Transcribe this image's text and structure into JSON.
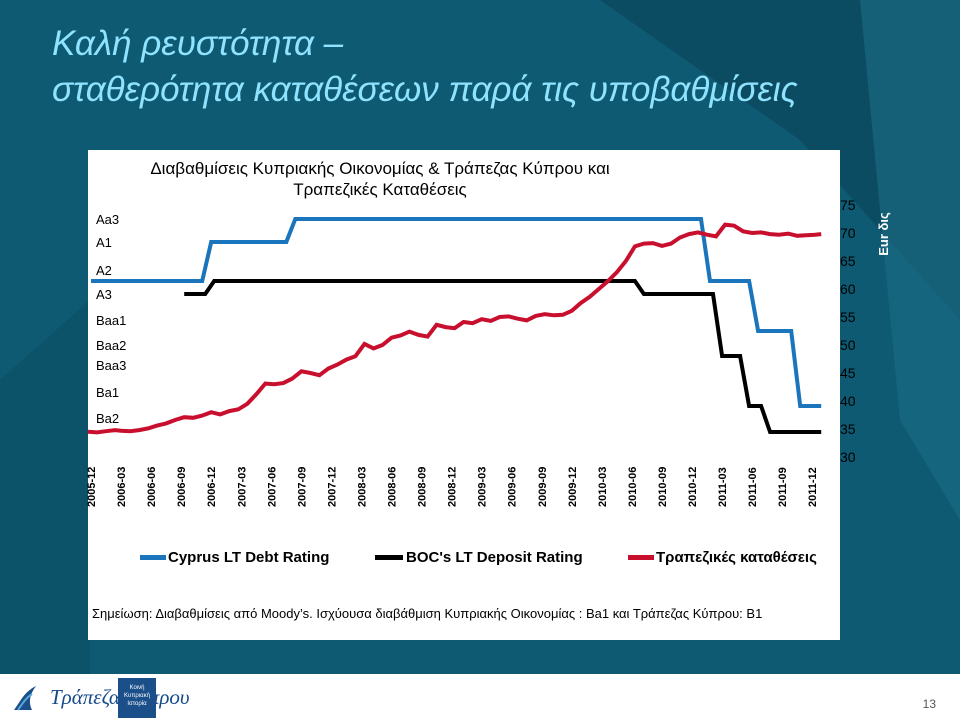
{
  "slide": {
    "title_line1": "Καλή ρευστότητα –",
    "title_line2": "σταθερότητα καταθέσεων παρά τις υποβαθμίσεις",
    "note": "Σημείωση: Διαβαθμίσεις από Moody’s.  Ισχύουσα διαβάθμιση Κυπριακής Οικονομίας : Ba1  και Τράπεζας Κύπρου:  B1",
    "page_number": "13",
    "logo_text": "Τράπεζα Κύπρου",
    "badge_text": "Κοινή Κυπριακή Ιστορία",
    "colors": {
      "background": "#0e5a73",
      "title": "#8fe3ff",
      "cyprus": "#1a75bc",
      "boc": "#000000",
      "deposits": "#c8102e"
    }
  },
  "chart_data": {
    "type": "line",
    "title_line1": "Διαβαθμίσεις Κυπριακής Οικονομίας & Τράπεζας Κύπρου και",
    "title_line2": "Τραπεζικές Καταθέσεις",
    "x_ticks": [
      "2005-12",
      "2006-03",
      "2006-06",
      "2006-09",
      "2006-12",
      "2007-03",
      "2007-06",
      "2007-09",
      "2007-12",
      "2008-03",
      "2008-06",
      "2008-09",
      "2008-12",
      "2009-03",
      "2009-06",
      "2009-09",
      "2009-12",
      "2010-03",
      "2010-06",
      "2010-09",
      "2010-12",
      "2011-03",
      "2011-06",
      "2011-09",
      "2011-12"
    ],
    "x_range": [
      0,
      24.5
    ],
    "left_axis": {
      "ticks": [
        "Aa3",
        "A1",
        "A2",
        "A3",
        "Baa1",
        "Baa2",
        "Baa3",
        "Ba1",
        "Ba2"
      ],
      "top": "Aa3"
    },
    "right_axis": {
      "ticks": [
        75,
        70,
        65,
        60,
        55,
        50,
        45,
        40,
        35,
        30
      ],
      "range": [
        30,
        75
      ],
      "label": "Eur δις"
    },
    "legend": {
      "cyprus": "Cyprus LT Debt Rating",
      "boc": "BOC's LT Deposit Rating",
      "deposits": "Τραπεζικές καταθέσεις"
    },
    "series": [
      {
        "key": "cyprus",
        "name": "Cyprus LT Debt Rating",
        "axis": "left",
        "points": [
          [
            0,
            "A2"
          ],
          [
            3.7,
            "A2"
          ],
          [
            4.0,
            "A1"
          ],
          [
            6.5,
            "A1"
          ],
          [
            6.8,
            "Aa3"
          ],
          [
            20.3,
            "Aa3"
          ],
          [
            20.6,
            "A2"
          ],
          [
            21.9,
            "A2"
          ],
          [
            22.2,
            "Baa1"
          ],
          [
            23.3,
            "Baa1"
          ],
          [
            23.6,
            "Ba1"
          ],
          [
            24.3,
            "Ba1"
          ]
        ]
      },
      {
        "key": "boc",
        "name": "BOC's LT Deposit Rating",
        "axis": "left",
        "points": [
          [
            3.1,
            "A3"
          ],
          [
            3.8,
            "A3"
          ],
          [
            4.1,
            "A2"
          ],
          [
            18.1,
            "A2"
          ],
          [
            18.4,
            "A3"
          ],
          [
            20.7,
            "A3"
          ],
          [
            21.0,
            "Baa2"
          ],
          [
            21.6,
            "Baa2"
          ],
          [
            21.9,
            "Ba1"
          ],
          [
            22.3,
            "Ba1"
          ],
          [
            22.6,
            "Ba2"
          ],
          [
            24.3,
            "Ba2"
          ]
        ]
      },
      {
        "key": "deposits",
        "name": "Τραπεζικές καταθέσεις",
        "axis": "right",
        "x": [
          -0.1,
          0.2,
          0.5,
          0.8,
          1.0,
          1.3,
          1.6,
          1.9,
          2.2,
          2.5,
          2.8,
          3.1,
          3.4,
          3.7,
          4.0,
          4.3,
          4.6,
          4.9,
          5.2,
          5.5,
          5.8,
          6.1,
          6.4,
          6.7,
          7.0,
          7.3,
          7.6,
          7.9,
          8.2,
          8.5,
          8.8,
          9.1,
          9.4,
          9.7,
          10.0,
          10.3,
          10.6,
          10.9,
          11.2,
          11.5,
          11.8,
          12.1,
          12.4,
          12.7,
          13.0,
          13.3,
          13.6,
          13.9,
          14.2,
          14.5,
          14.8,
          15.1,
          15.4,
          15.7,
          16.0,
          16.3,
          16.6,
          16.9,
          17.2,
          17.5,
          17.8,
          18.1,
          18.4,
          18.7,
          19.0,
          19.3,
          19.6,
          19.9,
          20.2,
          20.5,
          20.8,
          21.1,
          21.4,
          21.7,
          22.0,
          22.3,
          22.6,
          22.9,
          23.2,
          23.5,
          23.8,
          24.1,
          24.3
        ],
        "y": [
          34.5,
          34.4,
          34.6,
          34.8,
          34.7,
          34.6,
          34.8,
          35.1,
          35.6,
          36.0,
          36.6,
          37.1,
          37.0,
          37.4,
          38.0,
          37.6,
          38.2,
          38.5,
          39.5,
          41.2,
          43.1,
          43.0,
          43.2,
          44.0,
          45.3,
          45.0,
          44.6,
          45.8,
          46.5,
          47.4,
          48.0,
          50.2,
          49.4,
          50.0,
          51.3,
          51.7,
          52.4,
          51.8,
          51.5,
          53.6,
          53.2,
          53.0,
          54.1,
          53.9,
          54.6,
          54.3,
          55.0,
          55.1,
          54.7,
          54.4,
          55.2,
          55.5,
          55.3,
          55.4,
          56.1,
          57.5,
          58.6,
          60.0,
          61.4,
          63.0,
          65.0,
          67.6,
          68.1,
          68.2,
          67.7,
          68.1,
          69.2,
          69.8,
          70.1,
          69.7,
          69.4,
          71.5,
          71.3,
          70.3,
          70.0,
          70.1,
          69.8,
          69.7,
          69.9,
          69.5,
          69.6,
          69.7,
          69.8
        ]
      }
    ]
  }
}
